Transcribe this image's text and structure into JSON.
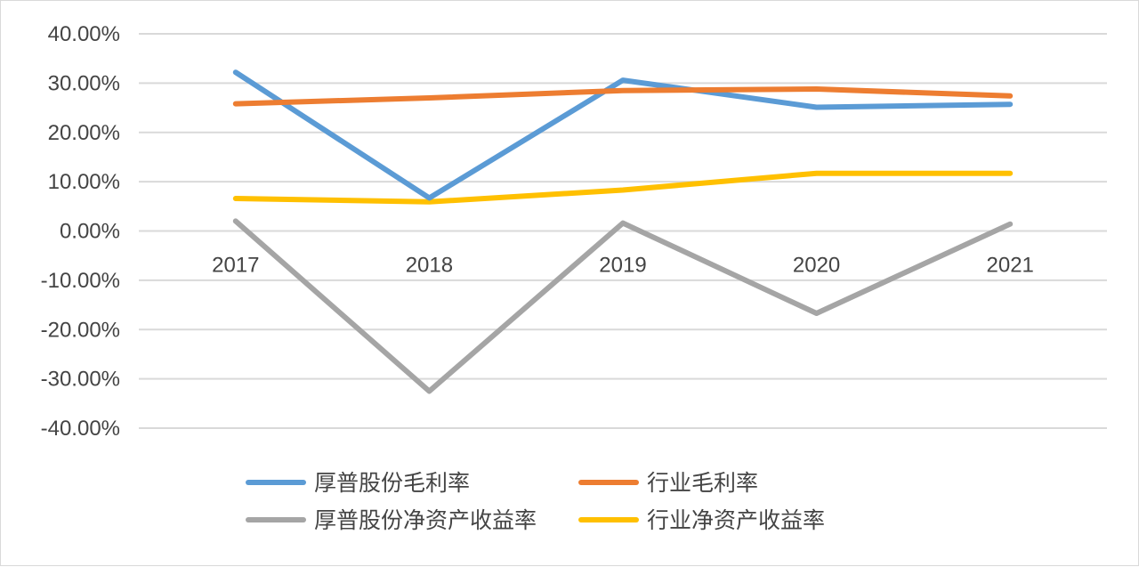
{
  "chart_data": {
    "type": "line",
    "title": "",
    "xlabel": "",
    "ylabel": "",
    "categories": [
      "2017",
      "2018",
      "2019",
      "2020",
      "2021"
    ],
    "ylim": [
      -0.4,
      0.4
    ],
    "ytick_step": 0.1,
    "y_ticks": [
      "40.00%",
      "30.00%",
      "20.00%",
      "10.00%",
      "0.00%",
      "-10.00%",
      "-20.00%",
      "-30.00%",
      "-40.00%"
    ],
    "grid": true,
    "legend_position": "bottom",
    "series": [
      {
        "name": "厚普股份毛利率",
        "color": "#5B9BD5",
        "values": [
          0.322,
          0.067,
          0.306,
          0.251,
          0.257
        ]
      },
      {
        "name": "行业毛利率",
        "color": "#ED7D31",
        "values": [
          0.258,
          0.27,
          0.285,
          0.288,
          0.274
        ]
      },
      {
        "name": "厚普股份净资产收益率",
        "color": "#A5A5A5",
        "values": [
          0.02,
          -0.325,
          0.016,
          -0.167,
          0.014
        ]
      },
      {
        "name": "行业净资产收益率",
        "color": "#FFC000",
        "values": [
          0.066,
          0.059,
          0.083,
          0.117,
          0.117
        ]
      }
    ]
  }
}
